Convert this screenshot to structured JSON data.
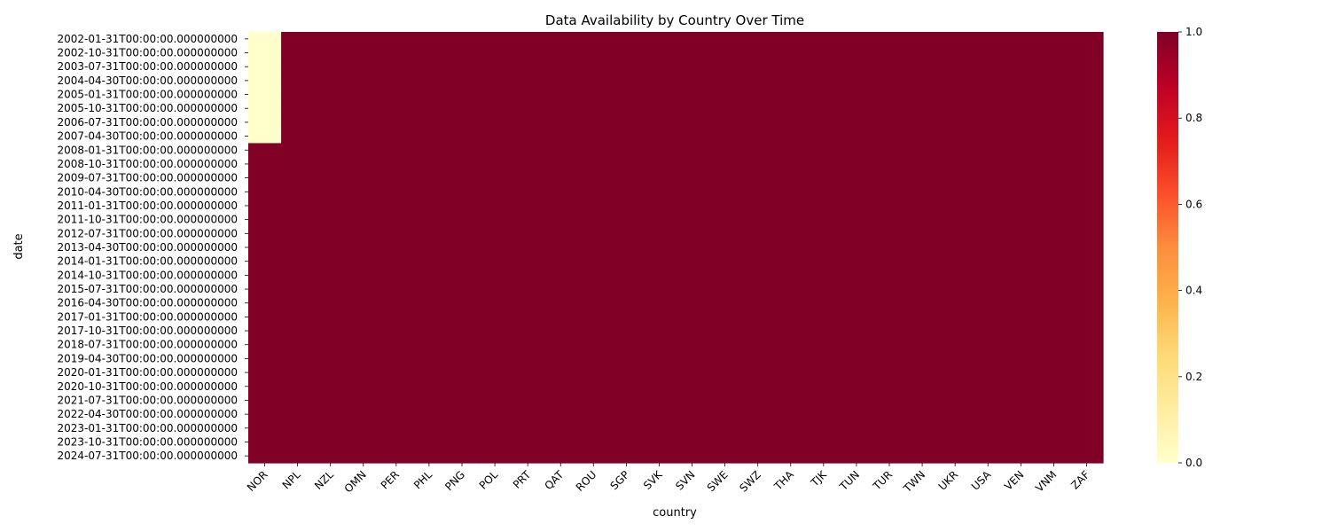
{
  "chart_data": {
    "type": "heatmap",
    "title": "Data Availability by Country Over Time",
    "xlabel": "country",
    "ylabel": "date",
    "countries": [
      "NOR",
      "NPL",
      "NZL",
      "OMN",
      "PER",
      "PHL",
      "PNG",
      "POL",
      "PRT",
      "QAT",
      "ROU",
      "SGP",
      "SVK",
      "SVN",
      "SWE",
      "SWZ",
      "THA",
      "TJK",
      "TUN",
      "TUR",
      "TWN",
      "UKR",
      "USA",
      "VEN",
      "VNM",
      "ZAF"
    ],
    "row_count": 31,
    "row_labels": [
      "2002-01-31T00:00:00.000000000",
      "2002-10-31T00:00:00.000000000",
      "2003-07-31T00:00:00.000000000",
      "2004-04-30T00:00:00.000000000",
      "2005-01-31T00:00:00.000000000",
      "2005-10-31T00:00:00.000000000",
      "2006-07-31T00:00:00.000000000",
      "2007-04-30T00:00:00.000000000",
      "2008-01-31T00:00:00.000000000",
      "2008-10-31T00:00:00.000000000",
      "2009-07-31T00:00:00.000000000",
      "2010-04-30T00:00:00.000000000",
      "2011-01-31T00:00:00.000000000",
      "2011-10-31T00:00:00.000000000",
      "2012-07-31T00:00:00.000000000",
      "2013-04-30T00:00:00.000000000",
      "2014-01-31T00:00:00.000000000",
      "2014-10-31T00:00:00.000000000",
      "2015-07-31T00:00:00.000000000",
      "2016-04-30T00:00:00.000000000",
      "2017-01-31T00:00:00.000000000",
      "2017-10-31T00:00:00.000000000",
      "2018-07-31T00:00:00.000000000",
      "2019-04-30T00:00:00.000000000",
      "2020-01-31T00:00:00.000000000",
      "2020-10-31T00:00:00.000000000",
      "2021-07-31T00:00:00.000000000",
      "2022-04-30T00:00:00.000000000",
      "2023-01-31T00:00:00.000000000",
      "2023-10-31T00:00:00.000000000",
      "2024-07-31T00:00:00.000000000"
    ],
    "values_summary": {
      "default_value": 1,
      "exceptions": [
        {
          "country": "NOR",
          "from_row": "2002-01-31T00:00:00.000000000",
          "through_row": "2007-04-30T00:00:00.000000000",
          "value": 0
        }
      ]
    },
    "colormap": "YlOrRd",
    "colorbar": {
      "vmin": 0.0,
      "vmax": 1.0,
      "ticks": [
        "0.0",
        "0.2",
        "0.4",
        "0.6",
        "0.8",
        "1.0"
      ]
    },
    "colors": {
      "low": "#ffffcc",
      "high": "#800026"
    }
  }
}
